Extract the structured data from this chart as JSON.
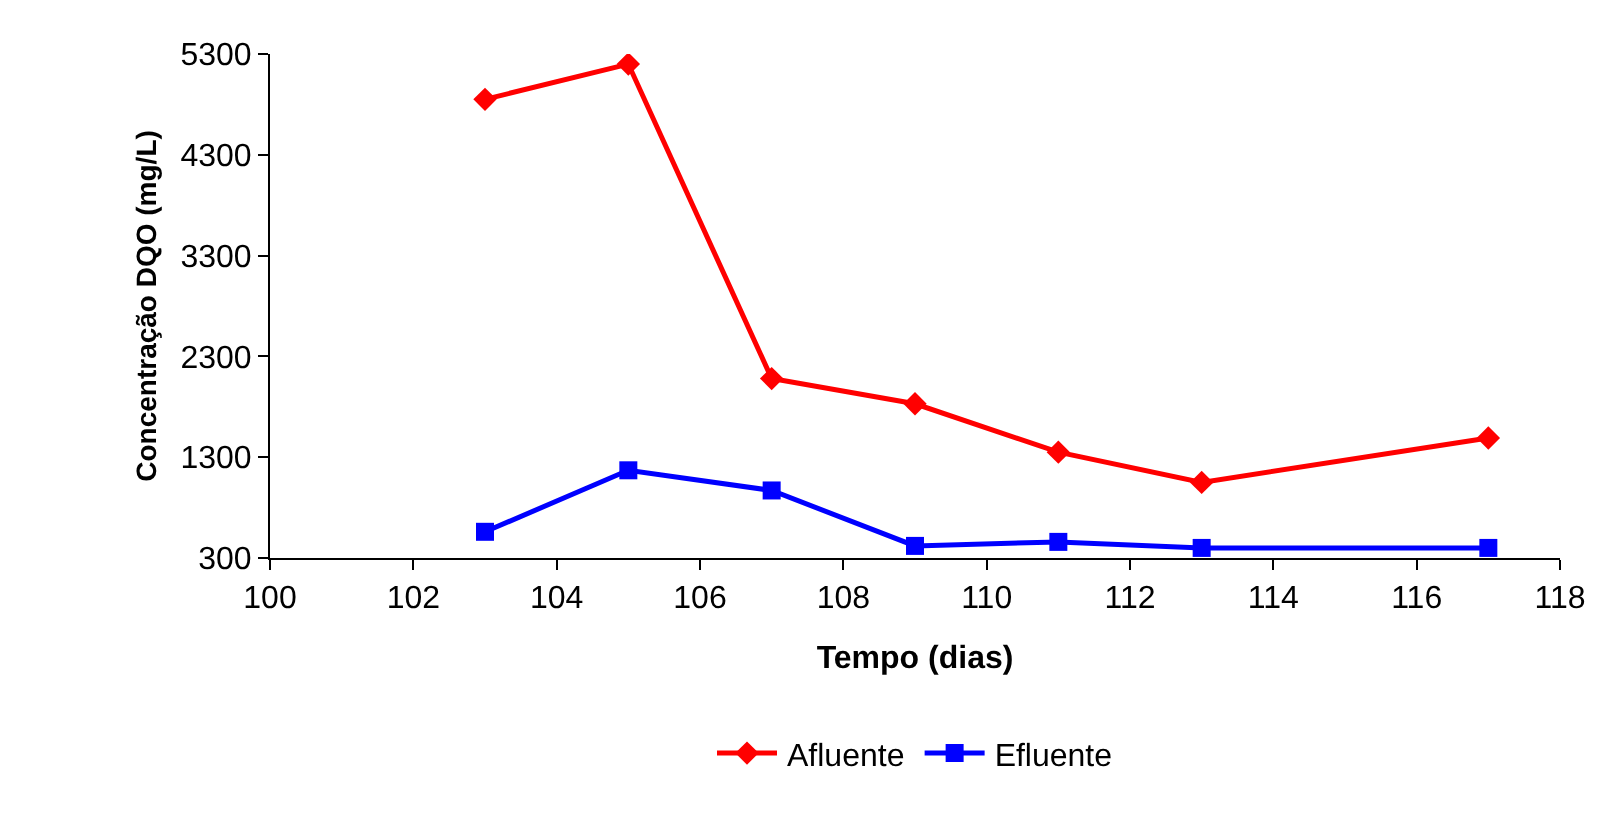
{
  "chart_data": {
    "type": "line",
    "xlabel": "Tempo (dias)",
    "ylabel": "Concentração DQO (mg/L)",
    "x": [
      103,
      105,
      107,
      109,
      111,
      113,
      117
    ],
    "series": [
      {
        "name": "Afluente",
        "color": "#ff0000",
        "marker": "diamond",
        "values": [
          4850,
          5200,
          2080,
          1830,
          1350,
          1050,
          1490
        ]
      },
      {
        "name": "Efluente",
        "color": "#0000ff",
        "marker": "square",
        "values": [
          560,
          1170,
          970,
          420,
          460,
          400,
          400
        ]
      }
    ],
    "xlim": [
      100,
      118
    ],
    "xticks": [
      100,
      102,
      104,
      106,
      108,
      110,
      112,
      114,
      116,
      118
    ],
    "ylim": [
      300,
      5300
    ],
    "yticks": [
      300,
      1300,
      2300,
      3300,
      4300,
      5300
    ],
    "grid": false,
    "legend": "bottom",
    "line_style": "solid"
  }
}
